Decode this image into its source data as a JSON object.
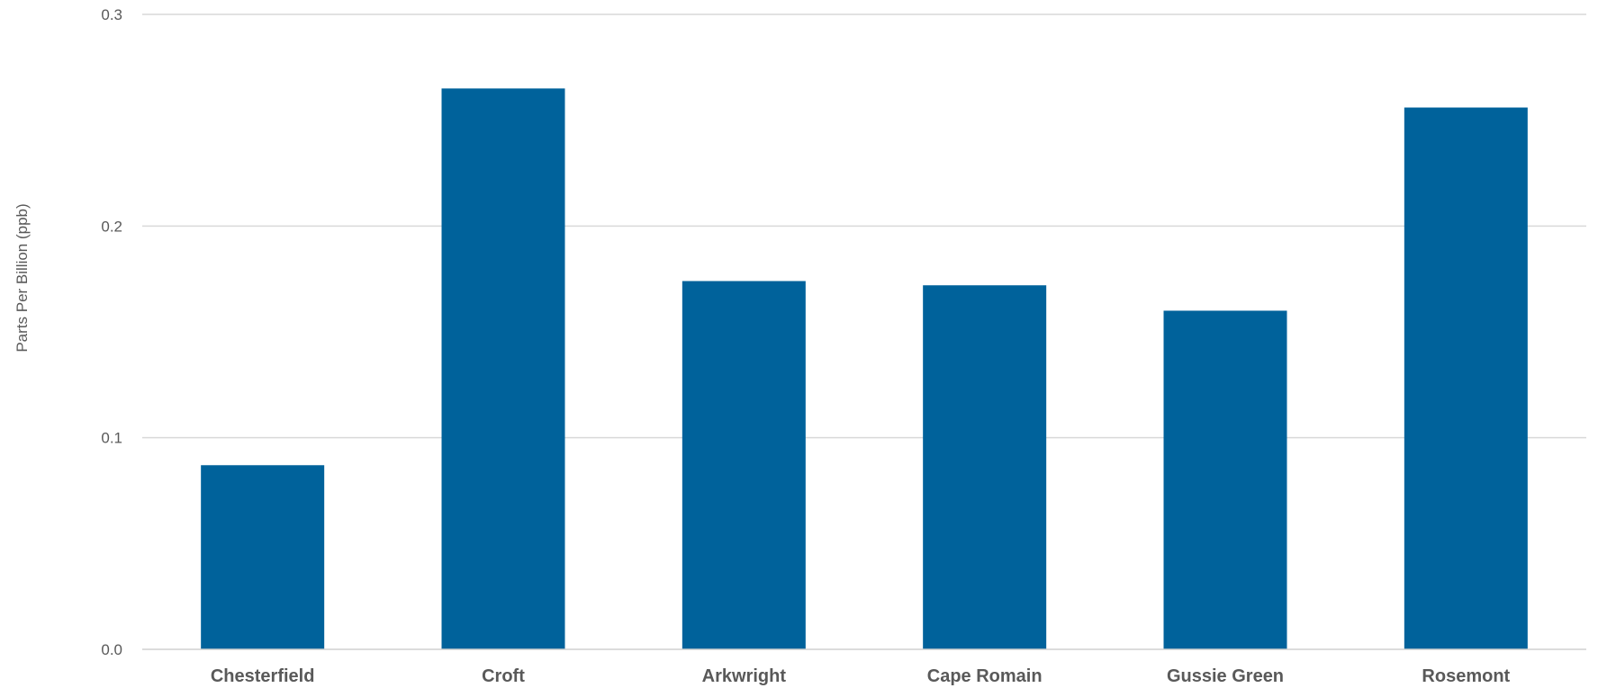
{
  "chart_data": {
    "type": "bar",
    "title": "",
    "xlabel": "",
    "ylabel": "Parts Per Billion (ppb)",
    "categories": [
      "Chesterfield",
      "Croft",
      "Arkwright",
      "Cape Romain",
      "Gussie Green",
      "Rosemont"
    ],
    "values": [
      0.087,
      0.265,
      0.174,
      0.172,
      0.16,
      0.256
    ],
    "ylim": [
      0,
      0.3
    ],
    "yticks": [
      "0.0",
      "0.1",
      "0.2",
      "0.3"
    ],
    "grid": true,
    "legend": "none",
    "bar_color": "#00629b"
  }
}
